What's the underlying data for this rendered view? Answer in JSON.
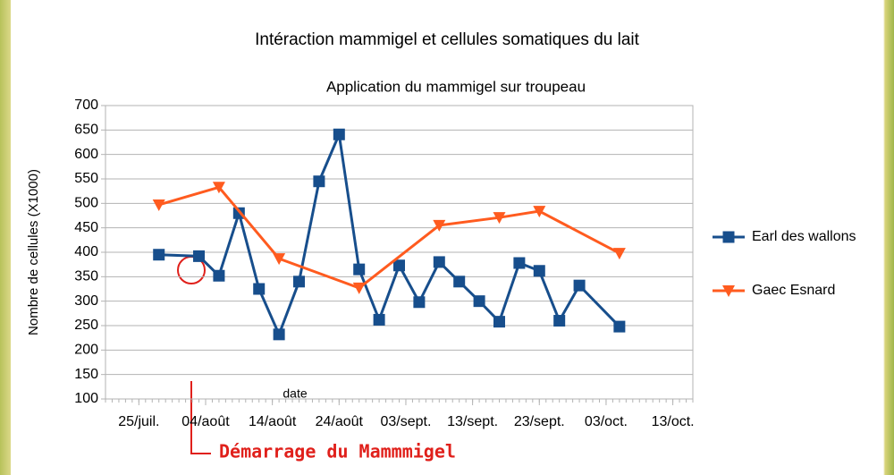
{
  "chart_data": {
    "type": "line",
    "title": "Intéraction mammigel et cellules somatiques du lait",
    "subtitle": "Application du mammigel sur troupeau",
    "xlabel": "date",
    "ylabel": "Nombre de cellules (X1000)",
    "annotation": "Démarrage du Mammmigel",
    "legend": "right",
    "grid": true,
    "xlim": [
      -5,
      83
    ],
    "xticks": [
      {
        "value": 0,
        "label": "25/juil."
      },
      {
        "value": 10,
        "label": "04/août"
      },
      {
        "value": 20,
        "label": "14/août"
      },
      {
        "value": 30,
        "label": "24/août"
      },
      {
        "value": 40,
        "label": "03/sept."
      },
      {
        "value": 50,
        "label": "13/sept."
      },
      {
        "value": 60,
        "label": "23/sept."
      },
      {
        "value": 70,
        "label": "03/oct."
      },
      {
        "value": 80,
        "label": "13/oct."
      }
    ],
    "ylim": [
      100,
      700
    ],
    "yticks": [
      100,
      150,
      200,
      250,
      300,
      350,
      400,
      450,
      500,
      550,
      600,
      650,
      700
    ],
    "series": [
      {
        "name": "Earl des wallons",
        "color": "#174e8c",
        "marker": "square",
        "x": [
          3,
          9,
          12,
          15,
          18,
          21,
          24,
          27,
          30,
          33,
          36,
          39,
          42,
          45,
          48,
          51,
          54,
          57,
          60,
          63,
          66,
          72
        ],
        "values": [
          395,
          392,
          352,
          480,
          325,
          232,
          340,
          545,
          641,
          365,
          262,
          373,
          298,
          380,
          340,
          300,
          258,
          378,
          362,
          260,
          332,
          248
        ]
      },
      {
        "name": "Gaec Esnard",
        "color": "#ff5b1f",
        "marker": "triangle",
        "x": [
          3,
          12,
          21,
          33,
          45,
          54,
          60,
          72
        ],
        "values": [
          497,
          533,
          387,
          327,
          455,
          471,
          484,
          398
        ]
      }
    ]
  }
}
